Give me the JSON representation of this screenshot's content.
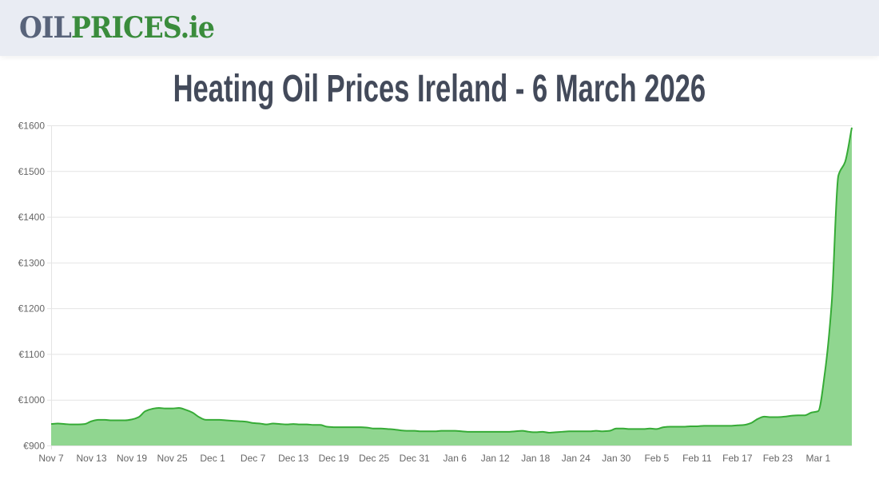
{
  "header": {
    "logo_part1": "OIL",
    "logo_part2": "PRICES.ie"
  },
  "title": "Heating Oil Prices Ireland - 6 March 2026",
  "chart_data": {
    "type": "area",
    "title": "Heating Oil Prices Ireland - 6 March 2026",
    "xlabel": "",
    "ylabel": "",
    "ylim": [
      900,
      1600
    ],
    "y_ticks": [
      "€900",
      "€1000",
      "€1100",
      "€1200",
      "€1300",
      "€1400",
      "€1500",
      "€1600"
    ],
    "y_tick_values": [
      900,
      1000,
      1100,
      1200,
      1300,
      1400,
      1500,
      1600
    ],
    "x_ticks": [
      "Nov 7",
      "Nov 13",
      "Nov 19",
      "Nov 25",
      "Dec 1",
      "Dec 7",
      "Dec 13",
      "Dec 19",
      "Dec 25",
      "Dec 31",
      "Jan 6",
      "Jan 12",
      "Jan 18",
      "Jan 24",
      "Jan 30",
      "Feb 5",
      "Feb 11",
      "Feb 17",
      "Feb 23",
      "Mar 1"
    ],
    "grid": true,
    "legend": "none",
    "colors": {
      "line": "#36ab36",
      "fill": "#90d690",
      "grid": "#e4e4e4"
    },
    "categories": [
      "Nov 7",
      "Nov 8",
      "Nov 9",
      "Nov 10",
      "Nov 11",
      "Nov 12",
      "Nov 13",
      "Nov 14",
      "Nov 15",
      "Nov 16",
      "Nov 17",
      "Nov 18",
      "Nov 19",
      "Nov 20",
      "Nov 21",
      "Nov 22",
      "Nov 23",
      "Nov 24",
      "Nov 25",
      "Nov 26",
      "Nov 27",
      "Nov 28",
      "Nov 29",
      "Nov 30",
      "Dec 1",
      "Dec 2",
      "Dec 3",
      "Dec 4",
      "Dec 5",
      "Dec 6",
      "Dec 7",
      "Dec 8",
      "Dec 9",
      "Dec 10",
      "Dec 11",
      "Dec 12",
      "Dec 13",
      "Dec 14",
      "Dec 15",
      "Dec 16",
      "Dec 17",
      "Dec 18",
      "Dec 19",
      "Dec 20",
      "Dec 21",
      "Dec 22",
      "Dec 23",
      "Dec 24",
      "Dec 25",
      "Dec 26",
      "Dec 27",
      "Dec 28",
      "Dec 29",
      "Dec 30",
      "Dec 31",
      "Jan 1",
      "Jan 2",
      "Jan 3",
      "Jan 4",
      "Jan 5",
      "Jan 6",
      "Jan 7",
      "Jan 8",
      "Jan 9",
      "Jan 10",
      "Jan 11",
      "Jan 12",
      "Jan 13",
      "Jan 14",
      "Jan 15",
      "Jan 16",
      "Jan 17",
      "Jan 18",
      "Jan 19",
      "Jan 20",
      "Jan 21",
      "Jan 22",
      "Jan 23",
      "Jan 24",
      "Jan 25",
      "Jan 26",
      "Jan 27",
      "Jan 28",
      "Jan 29",
      "Jan 30",
      "Jan 31",
      "Feb 1",
      "Feb 2",
      "Feb 3",
      "Feb 4",
      "Feb 5",
      "Feb 6",
      "Feb 7",
      "Feb 8",
      "Feb 9",
      "Feb 10",
      "Feb 11",
      "Feb 12",
      "Feb 13",
      "Feb 14",
      "Feb 15",
      "Feb 16",
      "Feb 17",
      "Feb 18",
      "Feb 19",
      "Feb 20",
      "Feb 21",
      "Feb 22",
      "Feb 23",
      "Feb 24",
      "Feb 25",
      "Feb 26",
      "Feb 27",
      "Feb 28",
      "Mar 1",
      "Mar 2",
      "Mar 3",
      "Mar 4",
      "Mar 5",
      "Mar 6"
    ],
    "values": [
      947,
      948,
      947,
      946,
      946,
      947,
      953,
      956,
      956,
      955,
      955,
      955,
      957,
      962,
      975,
      980,
      982,
      981,
      981,
      982,
      978,
      972,
      962,
      956,
      956,
      956,
      955,
      954,
      953,
      952,
      949,
      948,
      946,
      948,
      947,
      946,
      947,
      946,
      946,
      945,
      945,
      941,
      940,
      940,
      940,
      940,
      940,
      939,
      937,
      937,
      936,
      935,
      933,
      932,
      932,
      931,
      931,
      931,
      932,
      932,
      932,
      931,
      930,
      930,
      930,
      930,
      930,
      930,
      930,
      931,
      932,
      930,
      929,
      930,
      928,
      929,
      930,
      931,
      931,
      931,
      931,
      932,
      931,
      932,
      937,
      937,
      936,
      936,
      936,
      937,
      936,
      940,
      941,
      941,
      941,
      942,
      942,
      943,
      943,
      943,
      943,
      943,
      944,
      945,
      949,
      958,
      963,
      962,
      962,
      963,
      965,
      966,
      966,
      972,
      975,
      1060,
      1210,
      1490,
      1520,
      1595
    ]
  }
}
